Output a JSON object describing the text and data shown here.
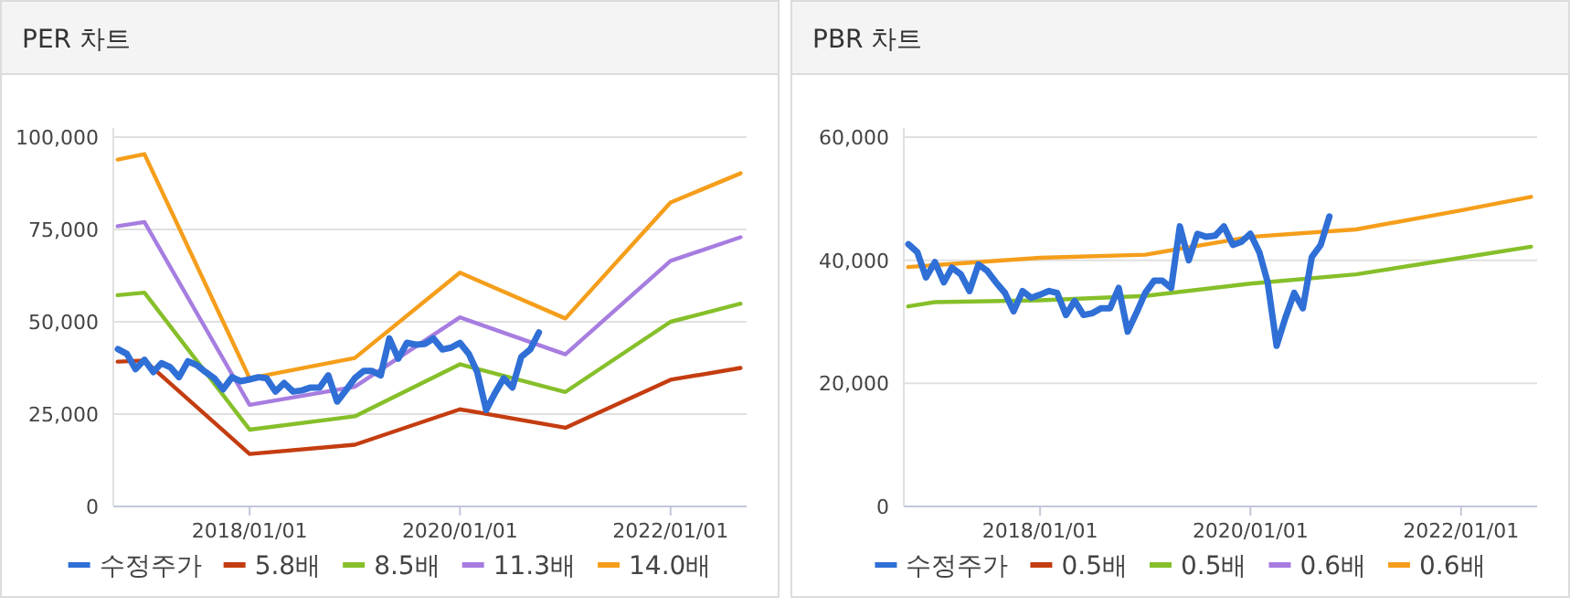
{
  "chart_data": [
    {
      "type": "line",
      "title": "PER 차트",
      "xlim": [
        "2016-09-15",
        "2022-09-22"
      ],
      "ylim": [
        0,
        100000
      ],
      "xticks": [
        {
          "value": "2018-01-01",
          "label": "2018/01/01"
        },
        {
          "value": "2020-01-01",
          "label": "2020/01/01"
        },
        {
          "value": "2022-01-01",
          "label": "2022/01/01"
        }
      ],
      "yticks": [
        0,
        {
          "value": 25000,
          "label": "25,000"
        },
        {
          "value": 50000,
          "label": "50,000"
        },
        {
          "value": 75000,
          "label": "75,000"
        },
        {
          "value": 100000,
          "label": "100,000"
        }
      ],
      "grid": "y",
      "legend": "bottom",
      "series": [
        {
          "name": "수정주가",
          "color": "#2f6fd6",
          "x": [
            "2016-10",
            "2016-11",
            "2016-12",
            "2017-01",
            "2017-02",
            "2017-03",
            "2017-04",
            "2017-05",
            "2017-06",
            "2017-07",
            "2017-08",
            "2017-09",
            "2017-10",
            "2017-11",
            "2017-12",
            "2018-01",
            "2018-02",
            "2018-03",
            "2018-04",
            "2018-05",
            "2018-06",
            "2018-07",
            "2018-08",
            "2018-09",
            "2018-10",
            "2018-11",
            "2018-12",
            "2019-01",
            "2019-02",
            "2019-03",
            "2019-04",
            "2019-05",
            "2019-06",
            "2019-07",
            "2019-08",
            "2019-09",
            "2019-10",
            "2019-11",
            "2019-12",
            "2020-01",
            "2020-02",
            "2020-03",
            "2020-04",
            "2020-05",
            "2020-06",
            "2020-07",
            "2020-08",
            "2020-09",
            "2020-10"
          ],
          "values": [
            42600,
            41300,
            37200,
            39700,
            36400,
            38800,
            37700,
            35000,
            39300,
            38300,
            36400,
            34700,
            31700,
            35000,
            33900,
            34400,
            35000,
            34700,
            31100,
            33400,
            31100,
            31400,
            32200,
            32200,
            35500,
            28400,
            31400,
            34700,
            36700,
            36700,
            35500,
            45500,
            40000,
            44300,
            43800,
            44000,
            45500,
            42500,
            43000,
            44300,
            41300,
            36400,
            26100,
            30600,
            34700,
            32200,
            40500,
            42500,
            47100
          ]
        },
        {
          "name": "5.8배",
          "color": "#c43d10",
          "x": [
            "2016-09-30",
            "2017-01-01",
            "2018-01-01",
            "2019-01-01",
            "2020-01-01",
            "2021-01-01",
            "2022-01-01",
            "2022-09-01"
          ],
          "values": [
            39200,
            39500,
            14200,
            16700,
            26300,
            21300,
            34300,
            37500
          ]
        },
        {
          "name": "8.5배",
          "color": "#86bf2a",
          "x": [
            "2016-09-30",
            "2017-01-01",
            "2018-01-01",
            "2019-01-01",
            "2020-01-01",
            "2021-01-01",
            "2022-01-01",
            "2022-09-01"
          ],
          "values": [
            57200,
            57900,
            20800,
            24400,
            38500,
            31000,
            50000,
            54900
          ]
        },
        {
          "name": "11.3배",
          "color": "#a77de0",
          "x": [
            "2016-09-30",
            "2017-01-01",
            "2018-01-01",
            "2019-01-01",
            "2020-01-01",
            "2021-01-01",
            "2022-01-01",
            "2022-09-01"
          ],
          "values": [
            75900,
            77000,
            27500,
            32400,
            51200,
            41200,
            66500,
            72900
          ]
        },
        {
          "name": "14.0배",
          "color": "#f59e1b",
          "x": [
            "2016-09-30",
            "2017-01-01",
            "2018-01-01",
            "2019-01-01",
            "2020-01-01",
            "2021-01-01",
            "2022-01-01",
            "2022-09-01"
          ],
          "values": [
            93900,
            95400,
            34700,
            40200,
            63300,
            50900,
            82300,
            90200
          ]
        }
      ]
    },
    {
      "type": "line",
      "title": "PBR 차트",
      "xlim": [
        "2016-09-15",
        "2022-09-22"
      ],
      "ylim": [
        0,
        60000
      ],
      "xticks": [
        {
          "value": "2018-01-01",
          "label": "2018/01/01"
        },
        {
          "value": "2020-01-01",
          "label": "2020/01/01"
        },
        {
          "value": "2022-01-01",
          "label": "2022/01/01"
        }
      ],
      "yticks": [
        0,
        {
          "value": 20000,
          "label": "20,000"
        },
        {
          "value": 40000,
          "label": "40,000"
        },
        {
          "value": 60000,
          "label": "60,000"
        }
      ],
      "grid": "y",
      "legend": "bottom",
      "series": [
        {
          "name": "수정주가",
          "color": "#2f6fd6",
          "x": [
            "2016-10",
            "2016-11",
            "2016-12",
            "2017-01",
            "2017-02",
            "2017-03",
            "2017-04",
            "2017-05",
            "2017-06",
            "2017-07",
            "2017-08",
            "2017-09",
            "2017-10",
            "2017-11",
            "2017-12",
            "2018-01",
            "2018-02",
            "2018-03",
            "2018-04",
            "2018-05",
            "2018-06",
            "2018-07",
            "2018-08",
            "2018-09",
            "2018-10",
            "2018-11",
            "2018-12",
            "2019-01",
            "2019-02",
            "2019-03",
            "2019-04",
            "2019-05",
            "2019-06",
            "2019-07",
            "2019-08",
            "2019-09",
            "2019-10",
            "2019-11",
            "2019-12",
            "2020-01",
            "2020-02",
            "2020-03",
            "2020-04",
            "2020-05",
            "2020-06",
            "2020-07",
            "2020-08",
            "2020-09",
            "2020-10"
          ],
          "values": [
            42600,
            41300,
            37200,
            39700,
            36400,
            38800,
            37700,
            35000,
            39300,
            38300,
            36400,
            34700,
            31700,
            35000,
            33900,
            34400,
            35000,
            34700,
            31100,
            33400,
            31100,
            31400,
            32200,
            32200,
            35500,
            28400,
            31400,
            34700,
            36700,
            36700,
            35500,
            45500,
            40000,
            44300,
            43800,
            44000,
            45500,
            42500,
            43000,
            44300,
            41300,
            36400,
            26100,
            30600,
            34700,
            32200,
            40500,
            42500,
            47100
          ]
        },
        {
          "name": "0.5배",
          "color": "#c43d10",
          "values": [
            null,
            null,
            null,
            null,
            null,
            null,
            null,
            null
          ]
        },
        {
          "name": "0.5배",
          "color": "#86bf2a",
          "x": [
            "2016-09-30",
            "2017-01-01",
            "2018-01-01",
            "2019-01-01",
            "2020-01-01",
            "2021-01-01",
            "2022-01-01",
            "2022-09-01"
          ],
          "values": [
            32500,
            33200,
            33500,
            34200,
            36200,
            37700,
            40400,
            42200
          ]
        },
        {
          "name": "0.6배",
          "color": "#a77de0",
          "values": [
            null,
            null,
            null,
            null,
            null,
            null,
            null,
            null
          ]
        },
        {
          "name": "0.6배",
          "color": "#f59e1b",
          "x": [
            "2016-09-30",
            "2017-01-01",
            "2018-01-01",
            "2019-01-01",
            "2020-01-01",
            "2021-01-01",
            "2022-01-01",
            "2022-09-01"
          ],
          "values": [
            38900,
            39200,
            40400,
            40900,
            43800,
            45000,
            48100,
            50300
          ]
        }
      ]
    }
  ]
}
